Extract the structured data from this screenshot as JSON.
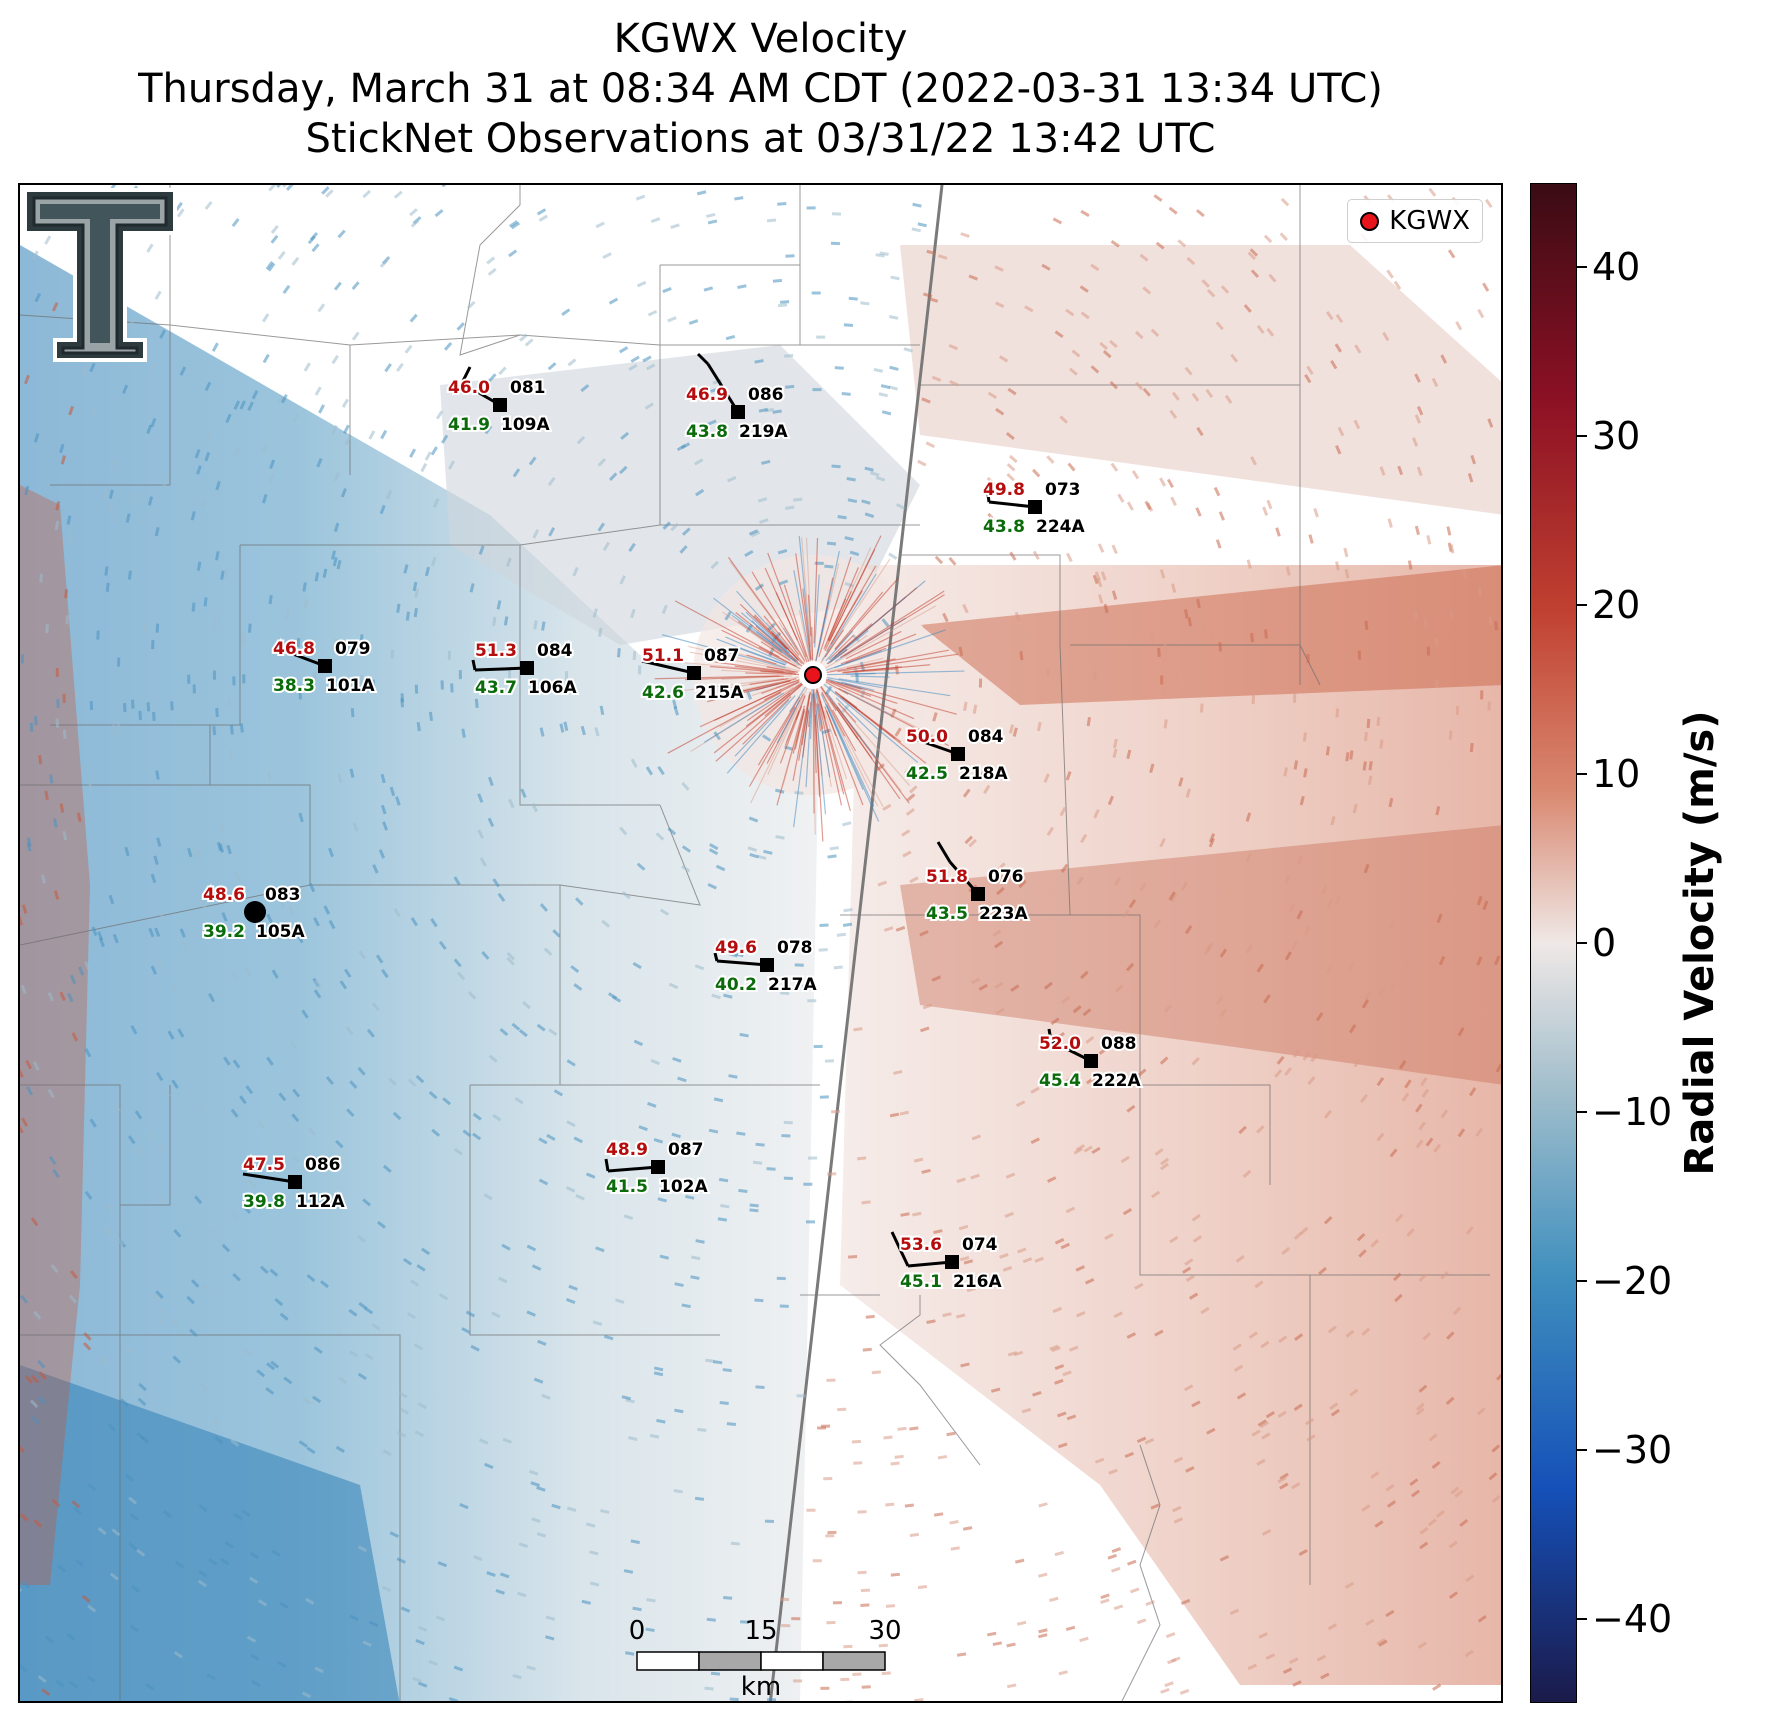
{
  "header": {
    "title_line1": "KGWX Velocity",
    "title_line2": "Thursday, March 31 at 08:34 AM CDT (2022-03-31 13:34 UTC)",
    "title_line3": "StickNet Observations at 03/31/22 13:42 UTC"
  },
  "legend": {
    "label": "KGWX",
    "marker_color": "#e8141c"
  },
  "colorbar": {
    "title": "Radial Velocity (m/s)",
    "ticks": [
      "40",
      "30",
      "20",
      "10",
      "0",
      "−10",
      "−20",
      "−30",
      "−40"
    ],
    "range": [
      -45,
      45
    ],
    "colors": {
      "max": "#3a0c14",
      "positive": "#c04030",
      "zero": "#efe8e6",
      "negative": "#3f8fbe",
      "min": "#1b1a4a"
    }
  },
  "scale_bar": {
    "ticks": [
      "0",
      "15",
      "30"
    ],
    "unit": "km"
  },
  "stations": [
    {
      "temp": "46.0",
      "dir": "081",
      "dew": "41.9",
      "id": "109A"
    },
    {
      "temp": "46.9",
      "dir": "086",
      "dew": "43.8",
      "id": "219A"
    },
    {
      "temp": "49.8",
      "dir": "073",
      "dew": "43.8",
      "id": "224A"
    },
    {
      "temp": "46.8",
      "dir": "079",
      "dew": "38.3",
      "id": "101A"
    },
    {
      "temp": "51.3",
      "dir": "084",
      "dew": "43.7",
      "id": "106A"
    },
    {
      "temp": "51.1",
      "dir": "087",
      "dew": "42.6",
      "id": "215A"
    },
    {
      "temp": "50.0",
      "dir": "084",
      "dew": "42.5",
      "id": "218A"
    },
    {
      "temp": "51.8",
      "dir": "076",
      "dew": "43.5",
      "id": "223A"
    },
    {
      "temp": "48.6",
      "dir": "083",
      "dew": "39.2",
      "id": "105A"
    },
    {
      "temp": "49.6",
      "dir": "078",
      "dew": "40.2",
      "id": "217A"
    },
    {
      "temp": "52.0",
      "dir": "088",
      "dew": "45.4",
      "id": "222A"
    },
    {
      "temp": "47.5",
      "dir": "086",
      "dew": "39.8",
      "id": "112A"
    },
    {
      "temp": "48.9",
      "dir": "087",
      "dew": "41.5",
      "id": "102A"
    },
    {
      "temp": "53.6",
      "dir": "074",
      "dew": "45.1",
      "id": "216A"
    }
  ]
}
